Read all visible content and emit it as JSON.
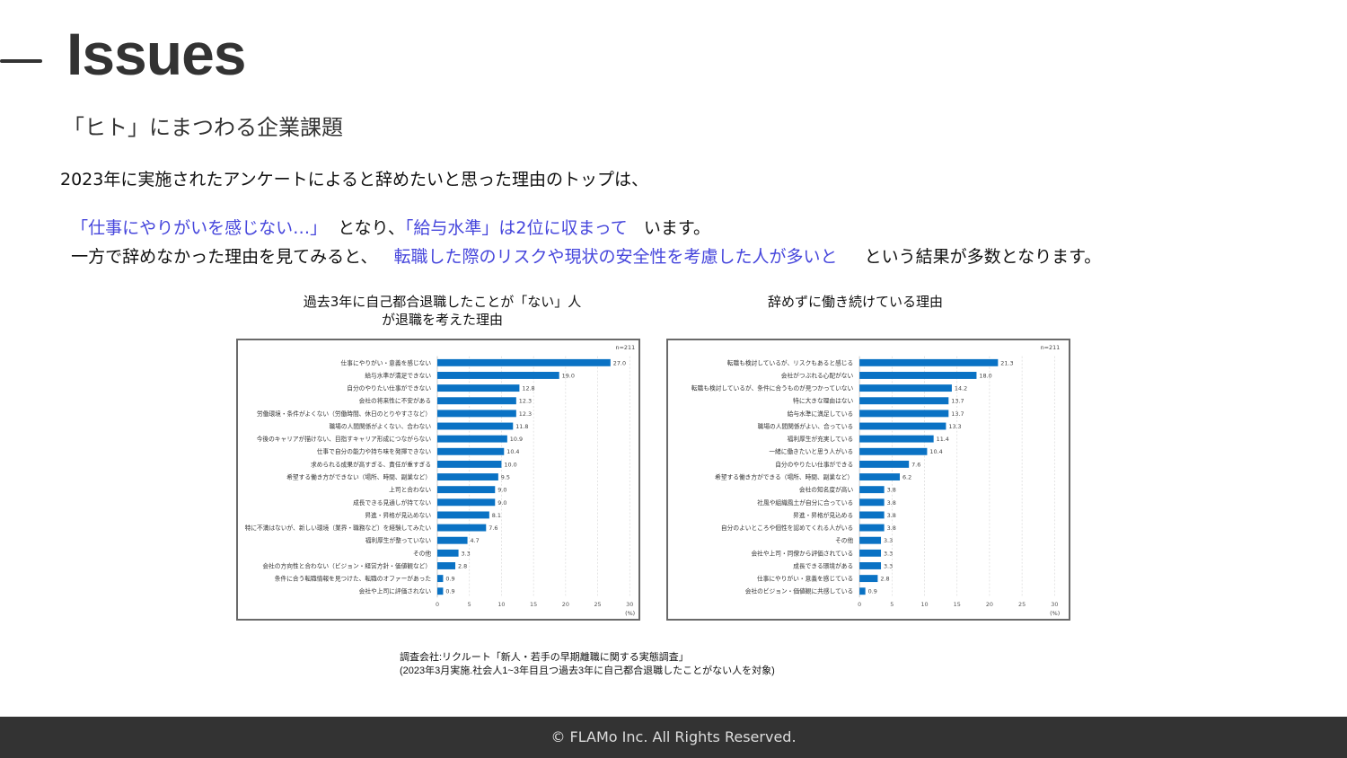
{
  "header": {
    "title": "Issues",
    "subtitle": "「ヒト」にまつわる企業課題"
  },
  "body": {
    "line1": "2023年に実施されたアンケートによると辞めたいと思った理由のトップは、",
    "line2": [
      {
        "text": "「仕事にやりがいを感じない…」",
        "highlight": true
      },
      {
        "text": "  となり、",
        "highlight": false
      },
      {
        "text": "「給与水準」は2位に収まって",
        "highlight": true
      },
      {
        "text": "   います。",
        "highlight": false
      }
    ],
    "line3": [
      {
        "text": "一方で辞めなかった理由を見てみると、   ",
        "highlight": false
      },
      {
        "text": "転職した際のリスクや現状の安全性を考慮した人が多いと",
        "highlight": true
      },
      {
        "text": "     という結果が多数となります。",
        "highlight": false
      }
    ],
    "highlight_color": "#4646dc"
  },
  "chart_data": [
    {
      "type": "bar",
      "orientation": "horizontal",
      "title": "過去3年に自己都合退職したことが「ない」人\nが退職を考えた理由",
      "note": "n=211",
      "xlabel": "(%)",
      "xlim": [
        0,
        30
      ],
      "xticks": [
        "0",
        "5",
        "10",
        "15",
        "20",
        "25",
        "30"
      ],
      "grid": true,
      "color": "#0a72c4",
      "categories": [
        "仕事にやりがい・意義を感じない",
        "給与水準が満足できない",
        "自分のやりたい仕事ができない",
        "会社の将来性に不安がある",
        "労働環境・条件がよくない（労働時間、休日のとりやすさなど）",
        "職場の人間関係がよくない、合わない",
        "今後のキャリアが描けない、目指すキャリア形成につながらない",
        "仕事で自分の能力や持ち味を発揮できない",
        "求められる成果が高すぎる、責任が重すぎる",
        "希望する働き方ができない（場所、時間、副業など）",
        "上司と合わない",
        "成長できる見通しが持てない",
        "昇進・昇格が見込めない",
        "特に不満はないが、新しい環境（業界・職務など）を経験してみたい",
        "福利厚生が整っていない",
        "その他",
        "会社の方向性と合わない（ビジョン・経営方針・価値観など）",
        "条件に合う転職情報を見つけた、転職のオファーがあった",
        "会社や上司に評価されない"
      ],
      "values": [
        27.0,
        19.0,
        12.8,
        12.3,
        12.3,
        11.8,
        10.9,
        10.4,
        10.0,
        9.5,
        9.0,
        9.0,
        8.1,
        7.6,
        4.7,
        3.3,
        2.8,
        0.9,
        0.9
      ]
    },
    {
      "type": "bar",
      "orientation": "horizontal",
      "title": "辞めずに働き続けている理由",
      "note": "n=211",
      "xlabel": "(%)",
      "xlim": [
        0,
        30
      ],
      "xticks": [
        "0",
        "5",
        "10",
        "15",
        "20",
        "25",
        "30"
      ],
      "grid": true,
      "color": "#0a72c4",
      "categories": [
        "転職も検討しているが、リスクもあると感じる",
        "会社がつぶれる心配がない",
        "転職も検討しているが、条件に合うものが見つかっていない",
        "特に大きな理由はない",
        "給与水準に満足している",
        "職場の人間関係がよい、合っている",
        "福利厚生が充実している",
        "一緒に働きたいと思う人がいる",
        "自分のやりたい仕事ができる",
        "希望する働き方ができる（場所、時間、副業など）",
        "会社の知名度が高い",
        "社風や組織風土が自分に合っている",
        "昇進・昇格が見込める",
        "自分のよいところや個性を認めてくれる人がいる",
        "その他",
        "会社や上司・同僚から評価されている",
        "成長できる環境がある",
        "仕事にやりがい・意義を感じている",
        "会社のビジョン・価値観に共感している"
      ],
      "values": [
        21.3,
        18.0,
        14.2,
        13.7,
        13.7,
        13.3,
        11.4,
        10.4,
        7.6,
        6.2,
        3.8,
        3.8,
        3.8,
        3.8,
        3.3,
        3.3,
        3.3,
        2.8,
        0.9
      ]
    }
  ],
  "source": {
    "line1": "調査会社:リクルート「新人・若手の早期離職に関する実態調査」",
    "line2": "(2023年3月実施.社会人1~3年目且つ過去3年に自己都合退職したことがない人を対象)"
  },
  "footer": {
    "copyright": "© FLAMo Inc. All Rights Reserved."
  }
}
